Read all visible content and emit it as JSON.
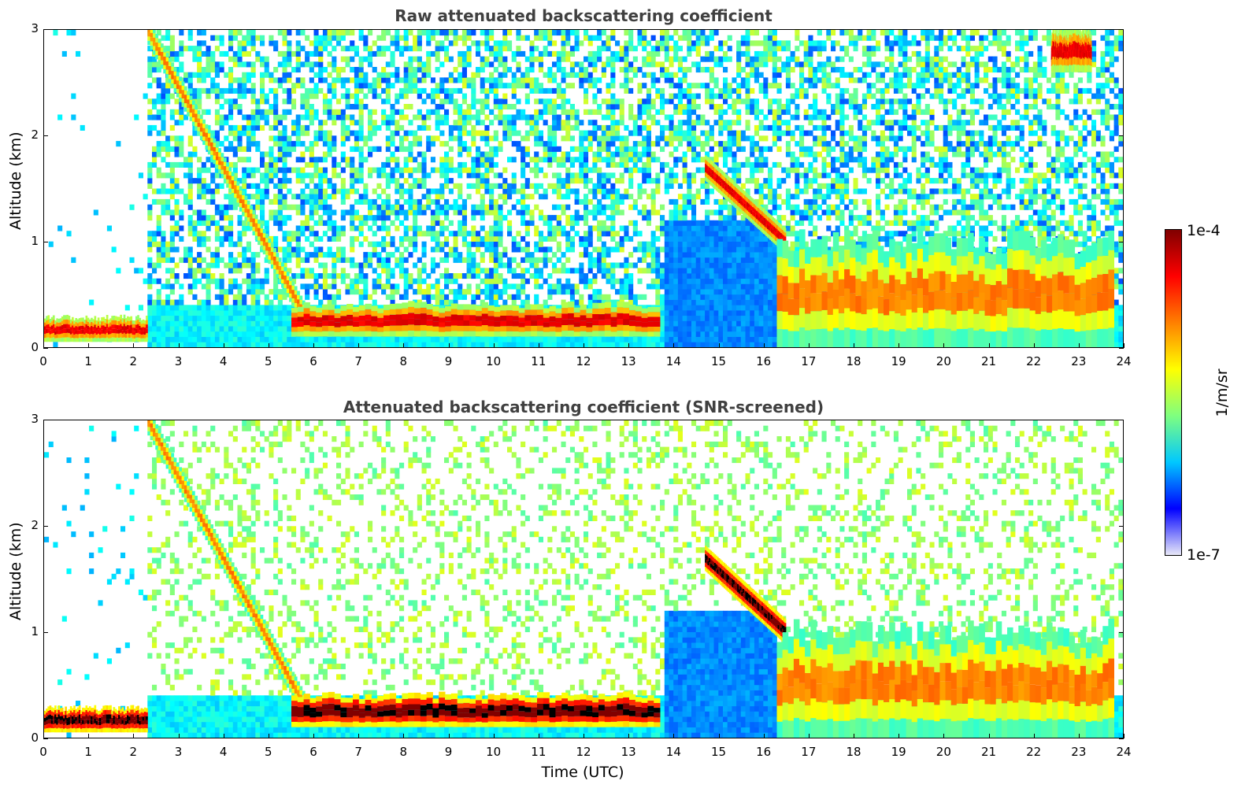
{
  "chart_data": [
    {
      "type": "heatmap",
      "title": "Raw attenuated backscattering coefficient",
      "xlabel": "",
      "ylabel": "Altitude (km)",
      "xlim": [
        0,
        24
      ],
      "ylim": [
        0,
        3
      ],
      "xticks": [
        "0",
        "1",
        "2",
        "3",
        "4",
        "5",
        "6",
        "7",
        "8",
        "9",
        "10",
        "11",
        "12",
        "13",
        "14",
        "15",
        "16",
        "17",
        "18",
        "19",
        "20",
        "21",
        "22",
        "23",
        "24"
      ],
      "yticks": [
        "0",
        "1",
        "2",
        "3"
      ],
      "features": [
        {
          "name": "surface layer",
          "t_start": 0.0,
          "t_end": 2.3,
          "alt_bottom": 0.05,
          "alt_top": 0.28,
          "level": "very high"
        },
        {
          "name": "descending plume",
          "t_start": 2.3,
          "t_end": 5.8,
          "alt_start": 3.0,
          "alt_end": 0.3,
          "level": "high"
        },
        {
          "name": "boundary layer",
          "t_start": 5.5,
          "t_end": 13.7,
          "alt_bottom": 0.1,
          "alt_top": 0.4,
          "level": "very high"
        },
        {
          "name": "elevated layer",
          "t_start": 14.7,
          "t_end": 16.5,
          "alt_start": 1.7,
          "alt_end": 1.0,
          "level": "very high"
        },
        {
          "name": "afternoon aerosol",
          "t_start": 16.3,
          "t_end": 23.8,
          "alt_bottom": 0.0,
          "alt_top": 1.0,
          "level": "high"
        },
        {
          "name": "upper cloud",
          "t_start": 22.4,
          "t_end": 23.3,
          "alt_bottom": 2.6,
          "alt_top": 3.0,
          "level": "very high"
        }
      ]
    },
    {
      "type": "heatmap",
      "title": "Attenuated backscattering coefficient (SNR-screened)",
      "xlabel": "Time (UTC)",
      "ylabel": "Altitude (km)",
      "xlim": [
        0,
        24
      ],
      "ylim": [
        0,
        3
      ],
      "xticks": [
        "0",
        "1",
        "2",
        "3",
        "4",
        "5",
        "6",
        "7",
        "8",
        "9",
        "10",
        "11",
        "12",
        "13",
        "14",
        "15",
        "16",
        "17",
        "18",
        "19",
        "20",
        "21",
        "22",
        "23",
        "24"
      ],
      "yticks": [
        "0",
        "1",
        "2",
        "3"
      ],
      "features": [
        {
          "name": "surface layer",
          "t_start": 0.0,
          "t_end": 2.3,
          "alt_bottom": 0.05,
          "alt_top": 0.28,
          "level": "saturated"
        },
        {
          "name": "descending plume",
          "t_start": 2.3,
          "t_end": 5.8,
          "alt_start": 3.0,
          "alt_end": 0.3,
          "level": "high"
        },
        {
          "name": "boundary layer",
          "t_start": 5.5,
          "t_end": 13.7,
          "alt_bottom": 0.1,
          "alt_top": 0.4,
          "level": "saturated"
        },
        {
          "name": "elevated layer",
          "t_start": 14.7,
          "t_end": 16.5,
          "alt_start": 1.7,
          "alt_end": 1.0,
          "level": "saturated"
        },
        {
          "name": "afternoon aerosol",
          "t_start": 16.3,
          "t_end": 23.8,
          "alt_bottom": 0.0,
          "alt_top": 1.0,
          "level": "high"
        }
      ]
    }
  ],
  "colorbar": {
    "max_label": "1e-4",
    "min_label": "1e-7",
    "unit_label": "1/m/sr",
    "colormap": "jet",
    "colors": [
      "#e8e8f8",
      "#0000ff",
      "#00c8ff",
      "#7fff7f",
      "#ffff00",
      "#ff8000",
      "#ff0000",
      "#800000"
    ]
  }
}
